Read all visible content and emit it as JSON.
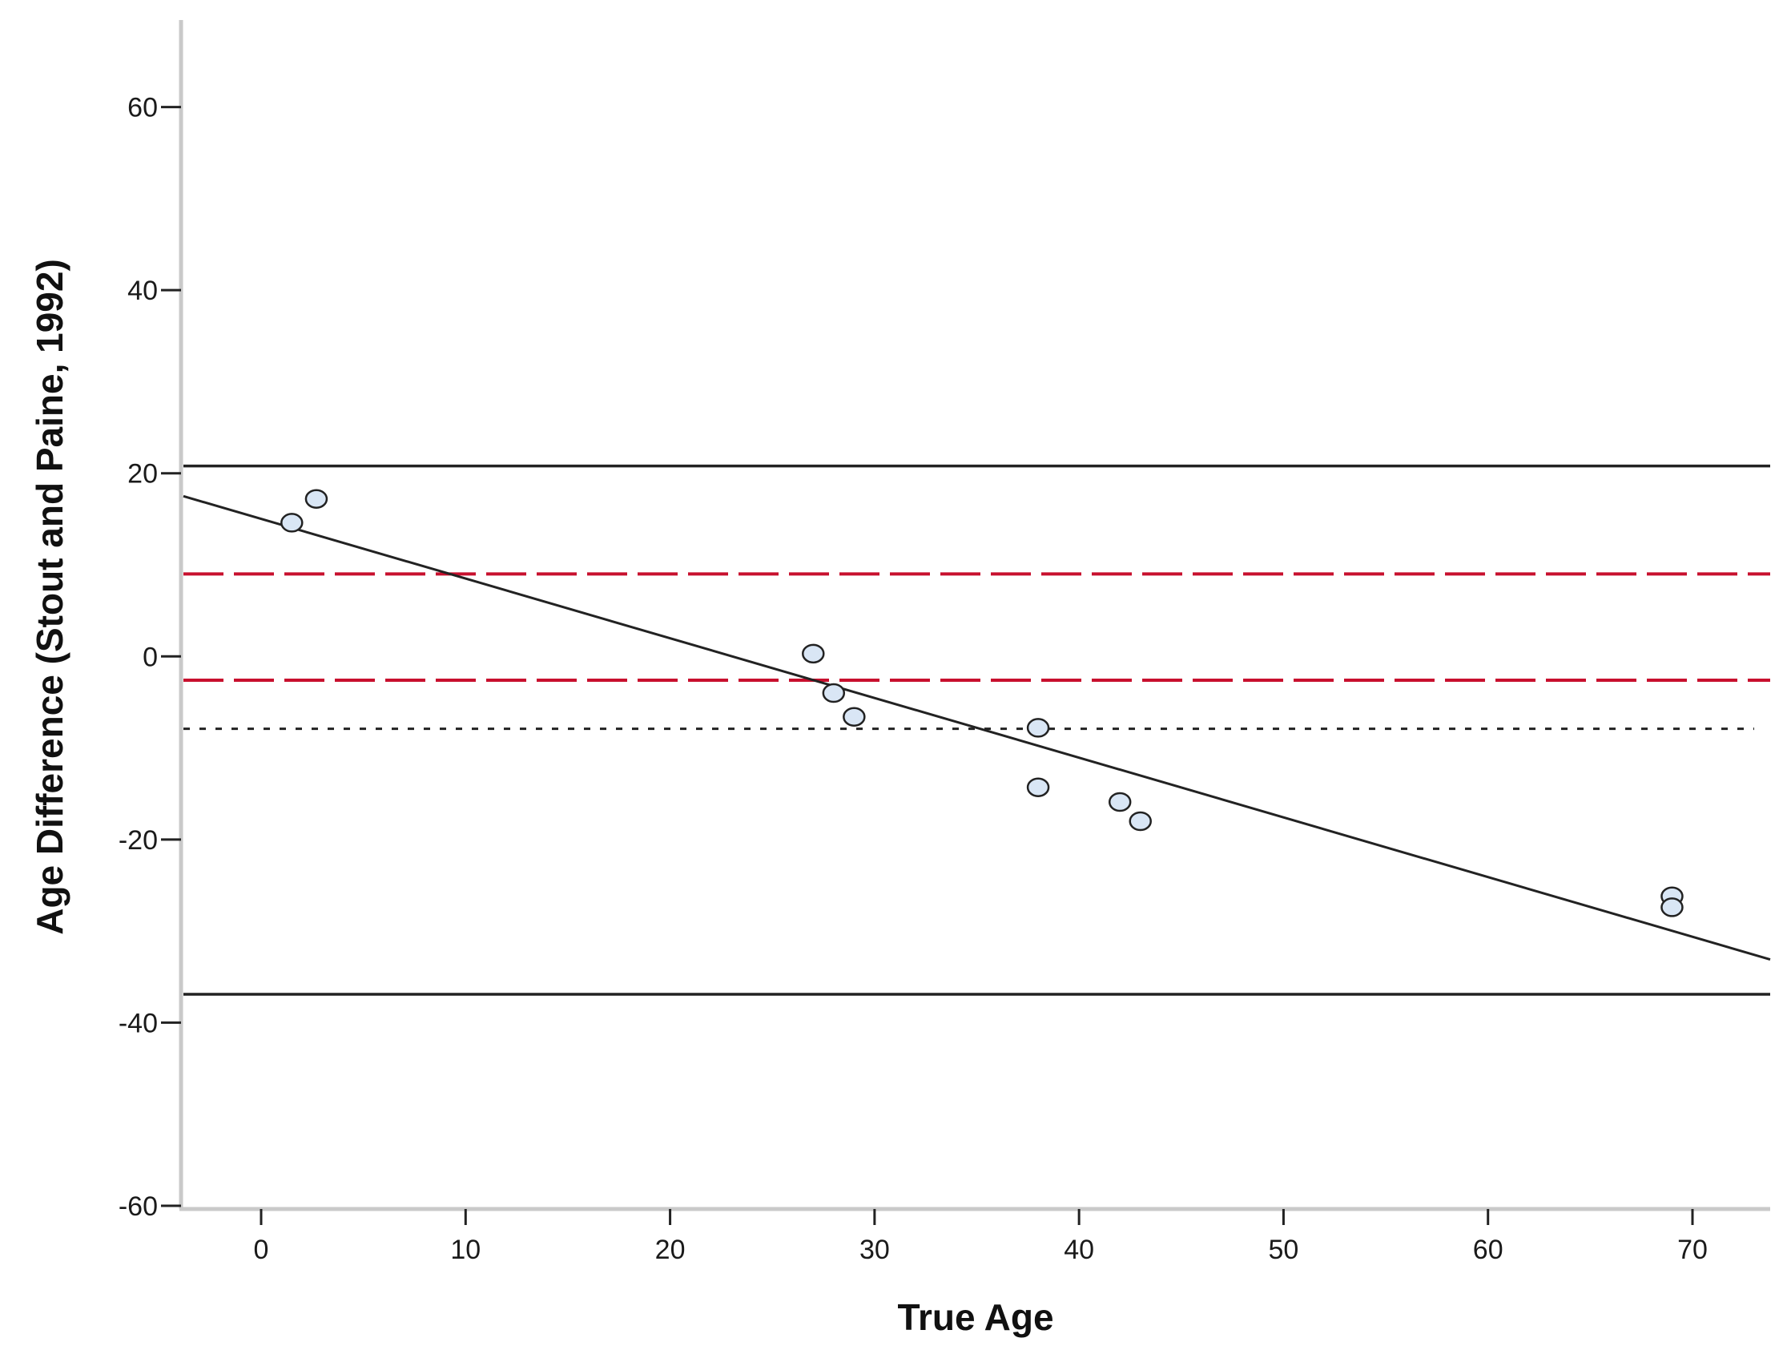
{
  "chart_data": {
    "type": "scatter",
    "xlabel": "True Age",
    "ylabel": "Age Difference (Stout and Paine, 1992)",
    "xlim": [
      -3.8,
      73.8
    ],
    "ylim": [
      -60,
      69.5
    ],
    "xticks": [
      0,
      10,
      20,
      30,
      40,
      50,
      60,
      70
    ],
    "yticks": [
      -60,
      -40,
      -20,
      0,
      20,
      40,
      60
    ],
    "grid": false,
    "points": [
      {
        "x": 1.5,
        "y": 14.6
      },
      {
        "x": 2.7,
        "y": 17.2
      },
      {
        "x": 27,
        "y": 0.3
      },
      {
        "x": 28,
        "y": -4.0
      },
      {
        "x": 29,
        "y": -6.6
      },
      {
        "x": 38,
        "y": -7.8
      },
      {
        "x": 38,
        "y": -14.3
      },
      {
        "x": 42,
        "y": -15.9
      },
      {
        "x": 43,
        "y": -18.0
      },
      {
        "x": 69,
        "y": -26.2
      },
      {
        "x": 69,
        "y": -27.4
      }
    ],
    "regression_line": {
      "x": [
        -3.8,
        73.8
      ],
      "y": [
        17.5,
        -33.1
      ]
    },
    "reference_lines": [
      {
        "y": 20.8,
        "style": "solid"
      },
      {
        "y": -36.9,
        "style": "solid"
      },
      {
        "y": 9.0,
        "style": "dashed"
      },
      {
        "y": -2.6,
        "style": "dashed"
      },
      {
        "y": -7.9,
        "style": "dotted"
      }
    ],
    "colors": {
      "points_fill": "#d9e6f5",
      "points_stroke": "#222222",
      "solid_line": "#222222",
      "dashed_line": "#c8102e",
      "dotted_line": "#222222",
      "axis": "#c9c9c9"
    }
  }
}
